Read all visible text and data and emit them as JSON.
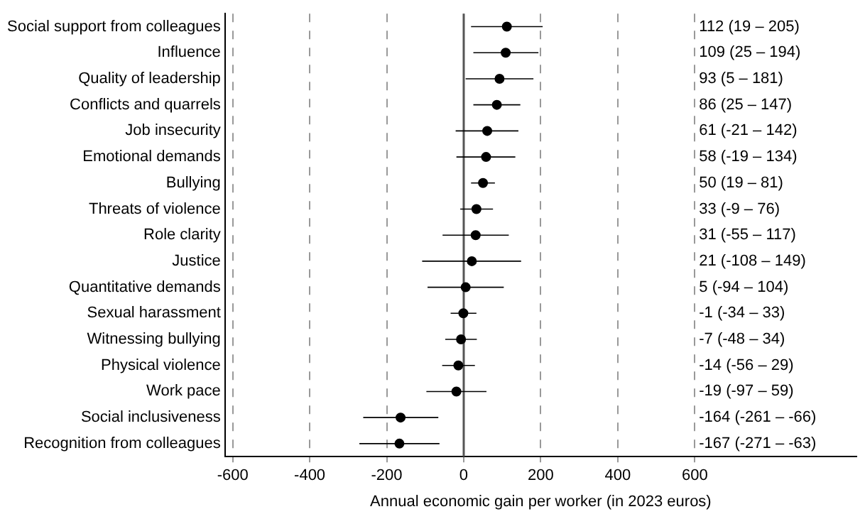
{
  "chart_data": {
    "type": "scatter",
    "orientation": "horizontal",
    "categories": [
      "Social support from colleagues",
      "Influence",
      "Quality of leadership",
      "Conflicts and quarrels",
      "Job insecurity",
      "Emotional demands",
      "Bullying",
      "Threats of violence",
      "Role clarity",
      "Justice",
      "Quantitative demands",
      "Sexual harassment",
      "Witnessing bullying",
      "Physical violence",
      "Work pace",
      "Social inclusiveness",
      "Recognition from colleagues"
    ],
    "values": [
      112,
      109,
      93,
      86,
      61,
      58,
      50,
      33,
      31,
      21,
      5,
      -1,
      -7,
      -14,
      -19,
      -164,
      -167
    ],
    "errors": [
      [
        19,
        205
      ],
      [
        25,
        194
      ],
      [
        5,
        181
      ],
      [
        25,
        147
      ],
      [
        -21,
        142
      ],
      [
        -19,
        134
      ],
      [
        19,
        81
      ],
      [
        -9,
        76
      ],
      [
        -55,
        117
      ],
      [
        -108,
        149
      ],
      [
        -94,
        104
      ],
      [
        -34,
        33
      ],
      [
        -48,
        34
      ],
      [
        -56,
        29
      ],
      [
        -97,
        59
      ],
      [
        -261,
        -66
      ],
      [
        -271,
        -63
      ]
    ],
    "annotations": [
      "112 (19 – 205)",
      "109 (25 – 194)",
      "93 (5 – 181)",
      "86 (25 – 147)",
      "61 (-21 – 142)",
      "58 (-19 – 134)",
      "50 (19 – 81)",
      "33 (-9 – 76)",
      "31 (-55 – 117)",
      "21 (-108 – 149)",
      "5 (-94 – 104)",
      "-1 (-34 – 33)",
      "-7 (-48 – 34)",
      "-14 (-56 – 29)",
      "-19 (-97 – 59)",
      "-164 (-261 – -66)",
      "-167 (-271 – -63)"
    ],
    "color": "#000000",
    "xlabel": "Annual economic gain per worker (in 2023 euros)",
    "xlim": [
      -620,
      1020
    ],
    "xticks": [
      -600,
      -400,
      -200,
      0,
      200,
      400,
      600
    ],
    "grid": "x",
    "marker": "circle",
    "ref_lines": [
      {
        "axis": "x",
        "value": 0,
        "color": "#555555"
      }
    ]
  }
}
